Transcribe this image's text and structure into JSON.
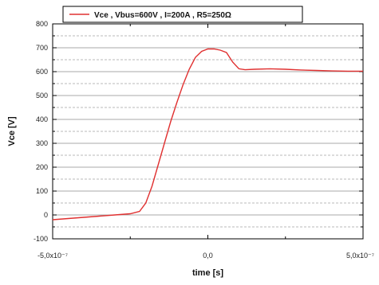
{
  "chart_data": {
    "type": "line",
    "xlabel": "time [s]",
    "ylabel": "Vce [V]",
    "xlim": [
      -5e-07,
      5e-07
    ],
    "ylim": [
      -100,
      800
    ],
    "x_tick_labels": [
      "-5,0x10⁻⁷",
      "0,0",
      "5,0x10⁻⁷"
    ],
    "y_ticks": [
      -100,
      0,
      100,
      200,
      300,
      400,
      500,
      600,
      700,
      800
    ],
    "grid": true,
    "legend_position": "top-center",
    "series": [
      {
        "name": "Vce , Vbus=600V , I=200A , R5=250Ω",
        "color": "#e03030",
        "x": [
          -5e-07,
          -4.5e-07,
          -4e-07,
          -3.5e-07,
          -3e-07,
          -2.5e-07,
          -2.2e-07,
          -2e-07,
          -1.8e-07,
          -1.6e-07,
          -1.4e-07,
          -1.2e-07,
          -1e-07,
          -8e-08,
          -6e-08,
          -4e-08,
          -2e-08,
          0.0,
          2e-08,
          4e-08,
          6e-08,
          8e-08,
          1e-07,
          1.2e-07,
          1.5e-07,
          2e-07,
          2.5e-07,
          3e-07,
          3.5e-07,
          4e-07,
          4.5e-07,
          5e-07
        ],
        "values": [
          -20,
          -15,
          -10,
          -5,
          0,
          5,
          15,
          50,
          120,
          210,
          300,
          390,
          470,
          545,
          610,
          660,
          685,
          695,
          695,
          690,
          680,
          640,
          612,
          608,
          610,
          612,
          610,
          607,
          605,
          603,
          602,
          602
        ]
      }
    ]
  }
}
